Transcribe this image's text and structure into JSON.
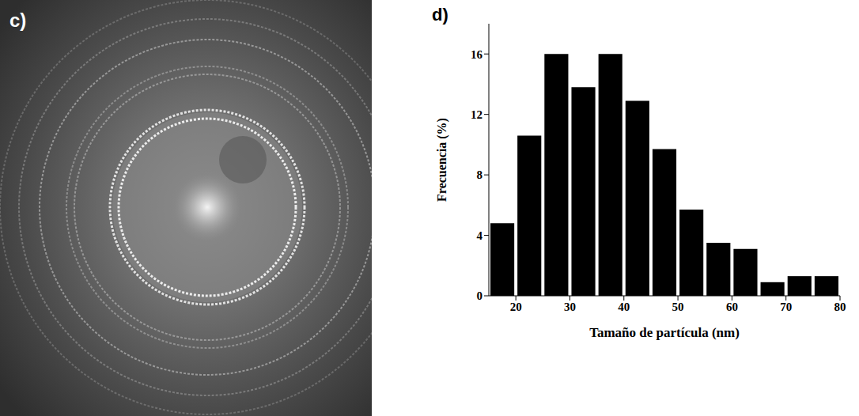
{
  "image_panel": {
    "label": "c)"
  },
  "chart_panel": {
    "label": "d)"
  },
  "chart_data": {
    "type": "histogram",
    "bins": [
      15,
      20,
      25,
      30,
      35,
      40,
      45,
      50,
      55,
      60,
      65,
      70,
      75,
      80
    ],
    "values": [
      4.8,
      10.6,
      16,
      13.8,
      16,
      12.9,
      9.7,
      5.7,
      3.5,
      3.1,
      0.9,
      1.3,
      1.3
    ],
    "color": "#000000",
    "xlabel": "Tamaño de partícula (nm)",
    "ylabel": "Frecuencia (%)",
    "xlim": [
      15,
      80
    ],
    "xticks": [
      20,
      30,
      40,
      50,
      60,
      70,
      80
    ],
    "ylim": [
      0,
      18
    ],
    "yticks": [
      0,
      4,
      8,
      12,
      16
    ],
    "grid": false
  }
}
